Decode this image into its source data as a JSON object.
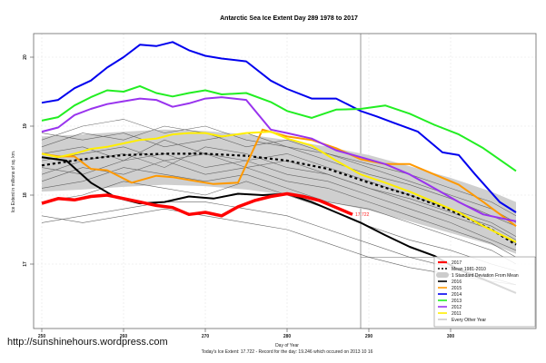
{
  "site_url": "http://sunshinehours.wordpress.com",
  "chart_data": {
    "type": "line",
    "title": "Antarctic Sea Ice Extent Day 289 1978 to 2017",
    "xlabel": "Day of Year",
    "ylabel": "Ice Extent in millions of sq. km.",
    "subtitle": "Today's Ice Extent: 17.722  - Record for the day: 19.246 which occured on 2013 10 16",
    "xlim": [
      249,
      310
    ],
    "ylim": [
      16.1,
      20.4
    ],
    "xticks": [
      250,
      260,
      270,
      280,
      290,
      300
    ],
    "yticks": [
      17,
      18,
      19,
      20
    ],
    "grid": true,
    "current_day": 289,
    "annotation": {
      "x": 288,
      "y": 17.722,
      "text": "17.722"
    },
    "band": {
      "name": "1 Standard Deviation From Mean",
      "x": [
        250,
        255,
        260,
        265,
        270,
        275,
        280,
        285,
        290,
        295,
        300,
        305,
        308
      ],
      "lower": [
        18.05,
        18.08,
        18.12,
        18.15,
        18.13,
        18.08,
        18.0,
        17.9,
        17.78,
        17.62,
        17.45,
        17.28,
        17.15
      ],
      "upper": [
        18.85,
        18.88,
        18.92,
        18.95,
        18.93,
        18.88,
        18.8,
        18.7,
        18.58,
        18.42,
        18.25,
        18.05,
        17.9
      ]
    },
    "series": [
      {
        "name": "Every Other Year",
        "color": "#888888",
        "role": "background",
        "x": [
          250,
          255,
          260,
          265,
          270,
          275,
          280,
          285,
          290,
          295,
          300,
          305,
          308
        ],
        "lines": [
          [
            18.3,
            18.5,
            18.6,
            18.4,
            18.7,
            18.6,
            18.4,
            18.3,
            18.1,
            17.9,
            17.7,
            17.5,
            17.3
          ],
          [
            18.6,
            18.7,
            18.5,
            18.8,
            18.6,
            18.5,
            18.6,
            18.4,
            18.2,
            18.0,
            17.8,
            17.6,
            17.4
          ],
          [
            18.1,
            18.2,
            18.4,
            18.3,
            18.2,
            18.3,
            18.1,
            17.9,
            17.8,
            17.6,
            17.4,
            17.2,
            17.0
          ],
          [
            18.7,
            18.9,
            18.8,
            19.0,
            18.9,
            18.7,
            18.8,
            18.6,
            18.4,
            18.2,
            18.0,
            17.8,
            17.6
          ],
          [
            17.6,
            17.7,
            17.8,
            17.9,
            17.9,
            17.8,
            17.7,
            17.5,
            17.3,
            17.1,
            16.95,
            16.8,
            16.7
          ],
          [
            18.4,
            18.3,
            18.5,
            18.6,
            18.4,
            18.5,
            18.3,
            18.2,
            18.0,
            17.8,
            17.6,
            17.35,
            17.2
          ],
          [
            18.9,
            18.8,
            18.9,
            18.7,
            18.8,
            18.9,
            18.7,
            18.5,
            18.3,
            18.15,
            17.95,
            17.7,
            17.55
          ],
          [
            18.2,
            18.4,
            18.3,
            18.5,
            18.6,
            18.4,
            18.2,
            18.1,
            17.9,
            17.7,
            17.5,
            17.3,
            17.1
          ],
          [
            18.5,
            18.6,
            18.7,
            18.5,
            18.3,
            18.4,
            18.5,
            18.3,
            18.1,
            17.95,
            17.75,
            17.55,
            17.35
          ],
          [
            17.9,
            18.0,
            18.2,
            18.1,
            18.0,
            18.2,
            18.0,
            17.8,
            17.55,
            17.35,
            17.2,
            17.0,
            16.9
          ],
          [
            18.8,
            19.0,
            19.1,
            18.9,
            19.0,
            18.8,
            18.7,
            18.6,
            18.45,
            18.3,
            18.1,
            17.9,
            17.7
          ],
          [
            17.7,
            17.6,
            17.7,
            17.8,
            17.7,
            17.6,
            17.5,
            17.3,
            17.1,
            16.95,
            16.85,
            16.75,
            16.7
          ]
        ]
      },
      {
        "name": "Mean 1981-2010",
        "color": "#000000",
        "style": "dashed",
        "x": [
          250,
          255,
          260,
          265,
          270,
          275,
          280,
          285,
          290,
          295,
          300,
          305,
          308
        ],
        "values": [
          18.43,
          18.52,
          18.58,
          18.6,
          18.6,
          18.57,
          18.5,
          18.38,
          18.18,
          18.0,
          17.78,
          17.5,
          17.28
        ]
      },
      {
        "name": "2016",
        "color": "#000000",
        "x": [
          250,
          253,
          256,
          259,
          262,
          265,
          268,
          271,
          274,
          277,
          280,
          283,
          286,
          289,
          292,
          295,
          298,
          301,
          304,
          308
        ],
        "values": [
          18.55,
          18.5,
          18.18,
          17.97,
          17.88,
          17.9,
          17.98,
          17.95,
          18.02,
          18.0,
          18.02,
          17.9,
          17.75,
          17.6,
          17.42,
          17.25,
          17.12,
          16.92,
          16.78,
          16.58
        ]
      },
      {
        "name": "2015",
        "color": "#ff9900",
        "x": [
          250,
          252,
          254,
          256,
          258,
          261,
          264,
          266,
          268,
          271,
          274,
          277,
          280,
          283,
          286,
          289,
          292,
          295,
          298,
          301,
          304,
          308
        ],
        "values": [
          18.6,
          18.56,
          18.56,
          18.38,
          18.36,
          18.18,
          18.28,
          18.26,
          18.22,
          18.16,
          18.18,
          18.95,
          18.85,
          18.8,
          18.68,
          18.52,
          18.45,
          18.45,
          18.3,
          18.15,
          17.9,
          17.55
        ]
      },
      {
        "name": "2014",
        "color": "#0000ee",
        "x": [
          250,
          252,
          254,
          256,
          258,
          260,
          262,
          264,
          266,
          268,
          270,
          272,
          275,
          278,
          280,
          283,
          286,
          289,
          291,
          293,
          296,
          299,
          301,
          303,
          306,
          308
        ],
        "values": [
          19.34,
          19.38,
          19.55,
          19.66,
          19.85,
          20.0,
          20.18,
          20.16,
          20.22,
          20.1,
          20.02,
          19.98,
          19.94,
          19.66,
          19.54,
          19.4,
          19.4,
          19.22,
          19.14,
          19.05,
          18.92,
          18.62,
          18.58,
          18.3,
          17.9,
          17.75
        ]
      },
      {
        "name": "2013",
        "color": "#22ee22",
        "x": [
          250,
          252,
          254,
          256,
          258,
          260,
          262,
          264,
          266,
          268,
          270,
          272,
          275,
          278,
          280,
          283,
          286,
          289,
          292,
          295,
          298,
          301,
          304,
          308
        ],
        "values": [
          19.08,
          19.13,
          19.3,
          19.42,
          19.52,
          19.5,
          19.58,
          19.48,
          19.43,
          19.48,
          19.52,
          19.46,
          19.48,
          19.35,
          19.22,
          19.12,
          19.24,
          19.25,
          19.3,
          19.18,
          19.02,
          18.88,
          18.68,
          18.35
        ]
      },
      {
        "name": "2012",
        "color": "#9933ee",
        "x": [
          250,
          252,
          254,
          256,
          258,
          260,
          262,
          264,
          266,
          268,
          270,
          272,
          275,
          278,
          280,
          283,
          286,
          289,
          292,
          295,
          298,
          301,
          304,
          308
        ],
        "values": [
          18.92,
          18.98,
          19.16,
          19.25,
          19.32,
          19.36,
          19.4,
          19.38,
          19.28,
          19.33,
          19.4,
          19.42,
          19.38,
          18.95,
          18.9,
          18.82,
          18.65,
          18.55,
          18.45,
          18.3,
          18.1,
          17.9,
          17.72,
          17.62
        ]
      },
      {
        "name": "2011",
        "color": "#ffee00",
        "x": [
          250,
          252,
          254,
          256,
          258,
          260,
          262,
          264,
          266,
          268,
          270,
          272,
          275,
          278,
          280,
          283,
          286,
          289,
          292,
          295,
          298,
          301,
          304,
          308
        ],
        "values": [
          18.6,
          18.55,
          18.6,
          18.67,
          18.7,
          18.75,
          18.8,
          18.82,
          18.88,
          18.9,
          18.9,
          18.85,
          18.9,
          18.92,
          18.82,
          18.72,
          18.5,
          18.3,
          18.18,
          18.05,
          17.9,
          17.75,
          17.55,
          17.32
        ]
      },
      {
        "name": "2017",
        "color": "#ff0000",
        "x": [
          250,
          252,
          254,
          256,
          258,
          260,
          262,
          264,
          266,
          268,
          270,
          272,
          274,
          276,
          278,
          280,
          282,
          284,
          286,
          288
        ],
        "values": [
          17.88,
          17.95,
          17.93,
          17.98,
          18.0,
          17.95,
          17.9,
          17.85,
          17.82,
          17.72,
          17.75,
          17.7,
          17.83,
          17.92,
          17.98,
          18.02,
          17.98,
          17.92,
          17.82,
          17.72
        ]
      }
    ],
    "legend": {
      "position": "bottom-right",
      "entries": [
        {
          "label": "2017",
          "color": "#ff0000",
          "kind": "thick"
        },
        {
          "label": "Mean 1981-2010",
          "color": "#000000",
          "kind": "dashed"
        },
        {
          "label": "1 Standard Deviation From Mean",
          "color": "#cccccc",
          "kind": "band"
        },
        {
          "label": "2016",
          "color": "#000000",
          "kind": "line"
        },
        {
          "label": "2015",
          "color": "#ff9900",
          "kind": "line"
        },
        {
          "label": "2014",
          "color": "#0000ee",
          "kind": "line"
        },
        {
          "label": "2013",
          "color": "#22ee22",
          "kind": "line"
        },
        {
          "label": "2012",
          "color": "#9933ee",
          "kind": "line"
        },
        {
          "label": "2011",
          "color": "#ffee00",
          "kind": "line"
        },
        {
          "label": "Every Other Year",
          "color": "#888888",
          "kind": "thin"
        }
      ]
    }
  }
}
